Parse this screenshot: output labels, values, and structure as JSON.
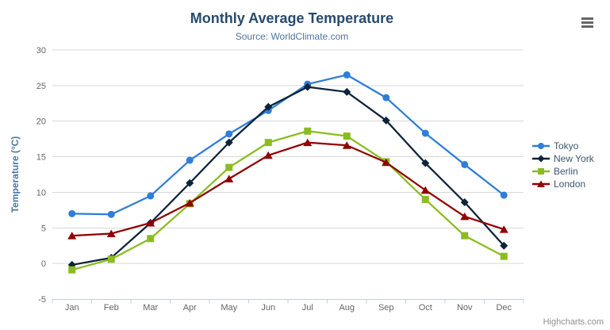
{
  "chart": {
    "credits_label": "Highcharts.com",
    "context_menu_icon": "hamburger-menu-icon"
  },
  "chart_data": {
    "type": "line",
    "title": "Monthly Average Temperature",
    "subtitle": "Source: WorldClimate.com",
    "xlabel": "",
    "ylabel": "Temperature (°C)",
    "ylim": [
      -5,
      30
    ],
    "ytick_interval": 5,
    "yticks": [
      30,
      25,
      20,
      15,
      10,
      5,
      0,
      -5
    ],
    "categories": [
      "Jan",
      "Feb",
      "Mar",
      "Apr",
      "May",
      "Jun",
      "Jul",
      "Aug",
      "Sep",
      "Oct",
      "Nov",
      "Dec"
    ],
    "grid": "horizontal",
    "legend_position": "right",
    "series": [
      {
        "name": "Tokyo",
        "color": "#2f7ed8",
        "marker": "circle",
        "values": [
          7.0,
          6.9,
          9.5,
          14.5,
          18.2,
          21.5,
          25.2,
          26.5,
          23.3,
          18.3,
          13.9,
          9.6
        ]
      },
      {
        "name": "New York",
        "color": "#0d233a",
        "marker": "diamond",
        "values": [
          -0.2,
          0.8,
          5.7,
          11.3,
          17.0,
          22.0,
          24.8,
          24.1,
          20.1,
          14.1,
          8.6,
          2.5
        ]
      },
      {
        "name": "Berlin",
        "color": "#8bbc21",
        "marker": "square",
        "values": [
          -0.9,
          0.6,
          3.5,
          8.4,
          13.5,
          17.0,
          18.6,
          17.9,
          14.3,
          9.0,
          3.9,
          1.0
        ]
      },
      {
        "name": "London",
        "color": "#910000",
        "marker": "triangle",
        "values": [
          3.9,
          4.2,
          5.7,
          8.5,
          11.9,
          15.2,
          17.0,
          16.6,
          14.2,
          10.3,
          6.6,
          4.8
        ]
      }
    ]
  },
  "colors": {
    "title": "#274b6d",
    "subtitle": "#4d759e",
    "axis_title": "#4d759e",
    "axis_label": "#666666",
    "grid": "#d8d8d8",
    "axis_line": "#c0d0e0",
    "legend_text": "#3e576f",
    "credits": "#909090",
    "menu_icon": "#666666",
    "background": "#ffffff"
  }
}
